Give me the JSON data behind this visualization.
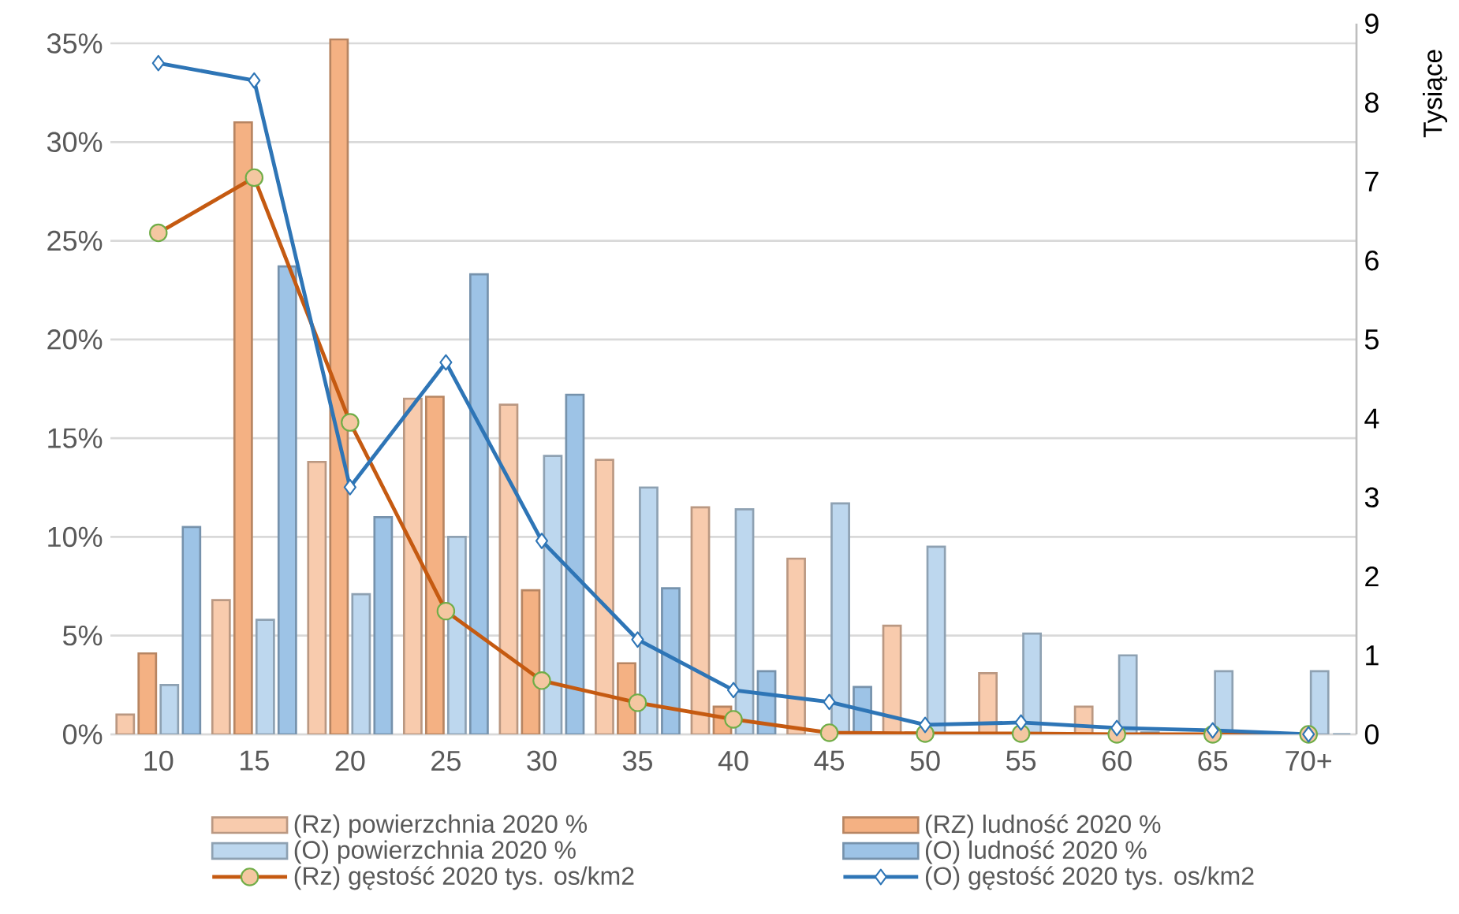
{
  "chart_data": {
    "type": "bar",
    "categories": [
      "10",
      "15",
      "20",
      "25",
      "30",
      "35",
      "40",
      "45",
      "50",
      "55",
      "60",
      "65",
      "70+"
    ],
    "y2label": "Tysiące",
    "ylim": [
      0,
      36
    ],
    "yticks": [
      {
        "value": 0,
        "label": "0%"
      },
      {
        "value": 5,
        "label": "5%"
      },
      {
        "value": 10,
        "label": "10%"
      },
      {
        "value": 15,
        "label": "15%"
      },
      {
        "value": 20,
        "label": "20%"
      },
      {
        "value": 25,
        "label": "25%"
      },
      {
        "value": 30,
        "label": "30%"
      },
      {
        "value": 35,
        "label": "35%"
      }
    ],
    "y2lim": [
      0,
      9
    ],
    "y2ticks": [
      0,
      1,
      2,
      3,
      4,
      5,
      6,
      7,
      8,
      9
    ],
    "grid": "y",
    "legend": "bottom",
    "series": [
      {
        "name": "(Rz) powierzchnia 2020 %",
        "type": "bar",
        "color": "#f8cbad",
        "values": [
          1.0,
          6.8,
          13.8,
          17.0,
          16.7,
          13.9,
          11.5,
          8.9,
          5.5,
          3.1,
          1.4,
          null,
          0
        ]
      },
      {
        "name": "(RZ) ludność 2020 %",
        "type": "bar",
        "color": "#f4b183",
        "values": [
          4.1,
          31.0,
          35.2,
          17.1,
          7.3,
          3.6,
          1.4,
          null,
          0.1,
          0.05,
          0,
          0,
          0
        ]
      },
      {
        "name": "(O) powierzchnia 2020 %",
        "type": "bar",
        "color": "#bdd7ee",
        "values": [
          2.5,
          5.8,
          7.1,
          10.0,
          14.1,
          12.5,
          11.4,
          11.7,
          9.5,
          5.1,
          4.0,
          3.2,
          3.2
        ]
      },
      {
        "name": "(O) ludność 2020 %",
        "type": "bar",
        "color": "#9dc3e6",
        "values": [
          10.5,
          23.7,
          11.0,
          23.3,
          17.2,
          7.4,
          3.2,
          2.4,
          null,
          null,
          0.1,
          0,
          0
        ]
      },
      {
        "name": "(Rz) gęstość 2020 tys. os/km2",
        "type": "line",
        "axis": "y2",
        "marker": "circle",
        "color": "#c55a11",
        "values": [
          6.35,
          7.05,
          3.95,
          1.56,
          0.68,
          0.4,
          0.19,
          0.02,
          0.01,
          0.01,
          0,
          0,
          0
        ]
      },
      {
        "name": "(O) gęstość 2020 tys. os/km2",
        "type": "line",
        "axis": "y2",
        "marker": "diamond",
        "color": "#2e75b6",
        "values": [
          8.5,
          8.28,
          3.13,
          4.71,
          2.45,
          1.2,
          0.56,
          0.41,
          0.12,
          0.15,
          0.08,
          0.05,
          0
        ]
      }
    ]
  }
}
